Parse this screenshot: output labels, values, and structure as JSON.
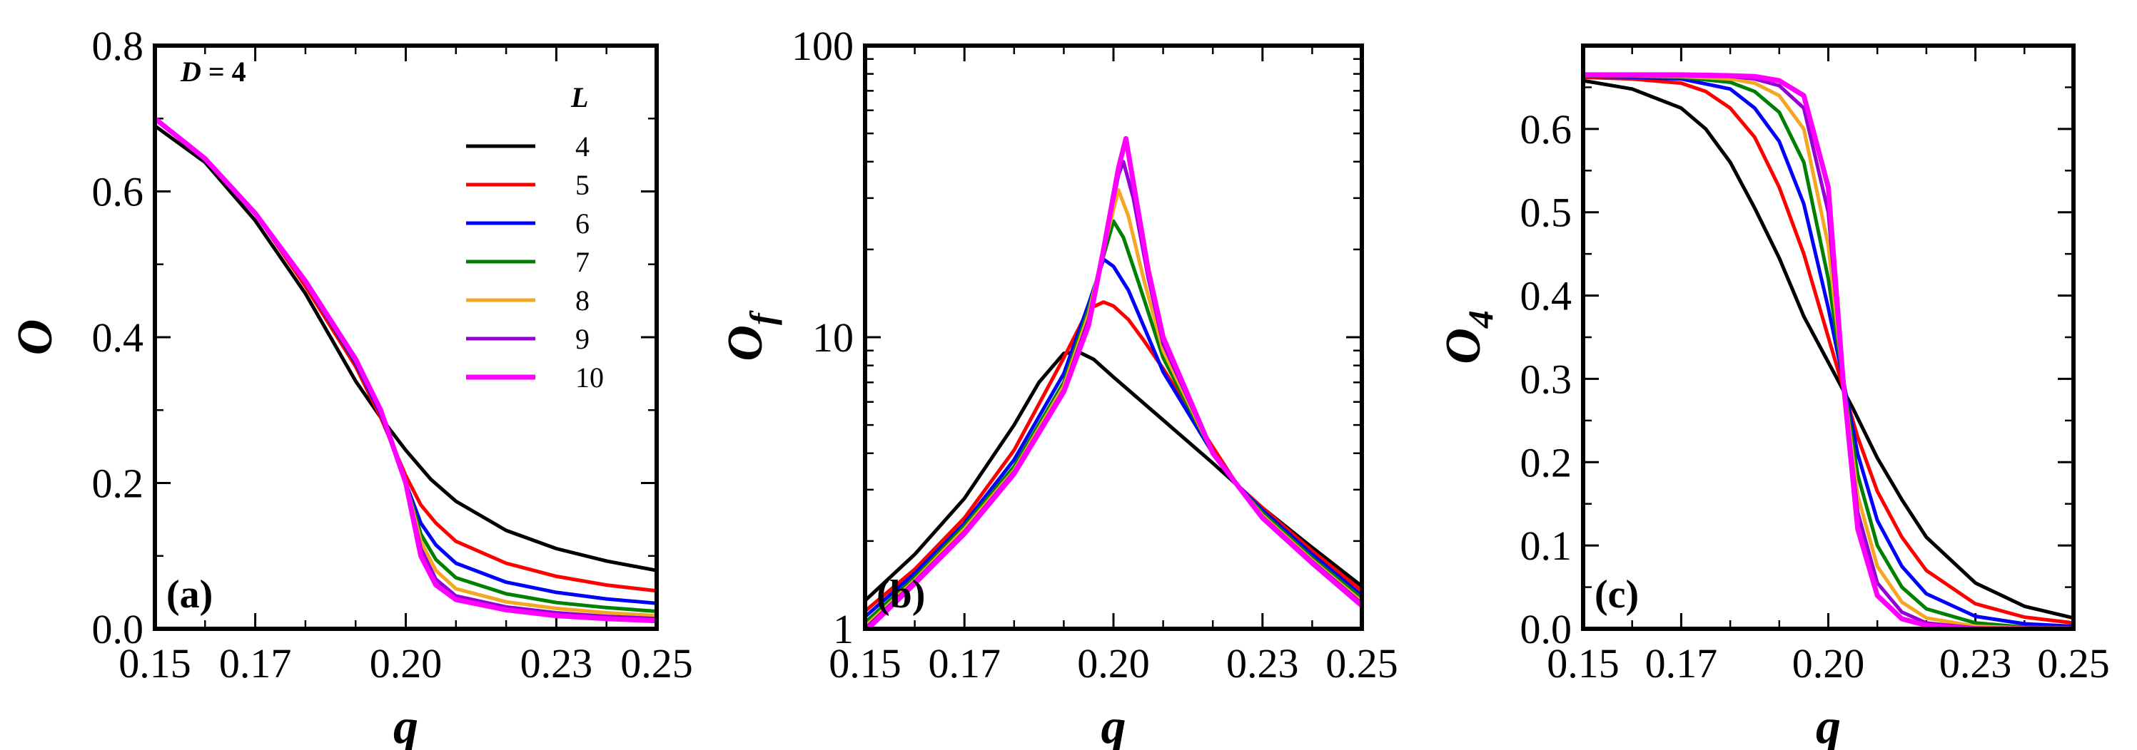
{
  "chart_data": [
    {
      "type": "line",
      "panel_label": "(a)",
      "xlabel": "q",
      "ylabel": "O",
      "ylabel_sub": "",
      "xlim": [
        0.15,
        0.25
      ],
      "ylim": [
        0,
        0.8
      ],
      "yscale": "linear",
      "xticks": [
        "0.15",
        "0.17",
        "0.20",
        "0.23",
        "0.25"
      ],
      "yticks": [
        "0.0",
        "0.2",
        "0.4",
        "0.6",
        "0.8"
      ],
      "annotation": {
        "var": "D",
        "text": " = 4"
      },
      "legend": {
        "title": "L",
        "placement": "top-right"
      },
      "series": [
        {
          "name": "4",
          "color": "#000000",
          "x": [
            0.15,
            0.16,
            0.17,
            0.18,
            0.185,
            0.19,
            0.195,
            0.2,
            0.205,
            0.21,
            0.22,
            0.23,
            0.24,
            0.25
          ],
          "y": [
            0.69,
            0.64,
            0.56,
            0.46,
            0.4,
            0.34,
            0.29,
            0.245,
            0.205,
            0.175,
            0.135,
            0.11,
            0.093,
            0.08
          ]
        },
        {
          "name": "5",
          "color": "#ff0000",
          "x": [
            0.15,
            0.16,
            0.17,
            0.18,
            0.19,
            0.195,
            0.2,
            0.203,
            0.206,
            0.21,
            0.22,
            0.23,
            0.24,
            0.25
          ],
          "y": [
            0.7,
            0.645,
            0.57,
            0.47,
            0.36,
            0.29,
            0.21,
            0.17,
            0.145,
            0.12,
            0.09,
            0.072,
            0.06,
            0.052
          ]
        },
        {
          "name": "6",
          "color": "#0000ff",
          "x": [
            0.15,
            0.16,
            0.17,
            0.18,
            0.19,
            0.195,
            0.2,
            0.203,
            0.206,
            0.21,
            0.22,
            0.23,
            0.24,
            0.25
          ],
          "y": [
            0.7,
            0.645,
            0.57,
            0.475,
            0.365,
            0.295,
            0.2,
            0.145,
            0.115,
            0.09,
            0.064,
            0.05,
            0.041,
            0.035
          ]
        },
        {
          "name": "7",
          "color": "#008000",
          "x": [
            0.15,
            0.16,
            0.17,
            0.18,
            0.19,
            0.195,
            0.2,
            0.203,
            0.206,
            0.21,
            0.22,
            0.23,
            0.24,
            0.25
          ],
          "y": [
            0.7,
            0.645,
            0.57,
            0.475,
            0.367,
            0.3,
            0.2,
            0.13,
            0.095,
            0.07,
            0.048,
            0.036,
            0.029,
            0.024
          ]
        },
        {
          "name": "8",
          "color": "#f5a623",
          "x": [
            0.15,
            0.16,
            0.17,
            0.18,
            0.19,
            0.195,
            0.2,
            0.203,
            0.206,
            0.21,
            0.22,
            0.23,
            0.24,
            0.25
          ],
          "y": [
            0.7,
            0.645,
            0.57,
            0.476,
            0.368,
            0.3,
            0.2,
            0.12,
            0.08,
            0.055,
            0.037,
            0.028,
            0.022,
            0.018
          ]
        },
        {
          "name": "9",
          "color": "#9400d3",
          "x": [
            0.15,
            0.16,
            0.17,
            0.18,
            0.19,
            0.195,
            0.2,
            0.203,
            0.206,
            0.21,
            0.22,
            0.23,
            0.24,
            0.25
          ],
          "y": [
            0.7,
            0.645,
            0.57,
            0.476,
            0.369,
            0.3,
            0.2,
            0.11,
            0.068,
            0.045,
            0.03,
            0.022,
            0.017,
            0.014
          ]
        },
        {
          "name": "10",
          "color": "#ff00ff",
          "x": [
            0.15,
            0.16,
            0.17,
            0.18,
            0.19,
            0.195,
            0.2,
            0.203,
            0.206,
            0.21,
            0.22,
            0.23,
            0.24,
            0.25
          ],
          "y": [
            0.7,
            0.645,
            0.57,
            0.477,
            0.37,
            0.3,
            0.2,
            0.1,
            0.06,
            0.04,
            0.026,
            0.018,
            0.014,
            0.011
          ]
        }
      ]
    },
    {
      "type": "line",
      "panel_label": "(b)",
      "xlabel": "q",
      "ylabel": "O",
      "ylabel_sub": "f",
      "xlim": [
        0.15,
        0.25
      ],
      "ylim": [
        1,
        100
      ],
      "yscale": "log",
      "xticks": [
        "0.15",
        "0.17",
        "0.20",
        "0.23",
        "0.25"
      ],
      "yticks": [
        "1",
        "10",
        "100"
      ],
      "series": [
        {
          "name": "4",
          "color": "#000000",
          "x": [
            0.15,
            0.16,
            0.17,
            0.18,
            0.185,
            0.19,
            0.193,
            0.196,
            0.2,
            0.21,
            0.22,
            0.225,
            0.23,
            0.24,
            0.25
          ],
          "y": [
            1.25,
            1.8,
            2.8,
            5.0,
            7.0,
            8.8,
            8.9,
            8.4,
            7.3,
            5.2,
            3.7,
            3.1,
            2.6,
            1.9,
            1.4
          ]
        },
        {
          "name": "5",
          "color": "#ff0000",
          "x": [
            0.15,
            0.16,
            0.17,
            0.18,
            0.19,
            0.195,
            0.198,
            0.2,
            0.203,
            0.206,
            0.21,
            0.22,
            0.225,
            0.23,
            0.24,
            0.25
          ],
          "y": [
            1.15,
            1.6,
            2.4,
            4.1,
            8.5,
            12.5,
            13.2,
            12.8,
            11.5,
            9.8,
            7.8,
            4.2,
            3.1,
            2.6,
            1.85,
            1.35
          ]
        },
        {
          "name": "6",
          "color": "#0000ff",
          "x": [
            0.15,
            0.16,
            0.17,
            0.18,
            0.19,
            0.195,
            0.198,
            0.2,
            0.203,
            0.206,
            0.21,
            0.22,
            0.225,
            0.23,
            0.24,
            0.25
          ],
          "y": [
            1.1,
            1.55,
            2.3,
            3.8,
            7.5,
            13.0,
            18.5,
            17.5,
            14.5,
            11.0,
            7.6,
            4.0,
            3.1,
            2.55,
            1.8,
            1.3
          ]
        },
        {
          "name": "7",
          "color": "#008000",
          "x": [
            0.15,
            0.16,
            0.17,
            0.18,
            0.19,
            0.195,
            0.198,
            0.2,
            0.202,
            0.205,
            0.21,
            0.22,
            0.225,
            0.23,
            0.24,
            0.25
          ],
          "y": [
            1.05,
            1.5,
            2.25,
            3.6,
            7.0,
            12.5,
            19.0,
            25.0,
            22.0,
            15.5,
            8.5,
            4.0,
            3.1,
            2.5,
            1.75,
            1.27
          ]
        },
        {
          "name": "8",
          "color": "#f5a623",
          "x": [
            0.15,
            0.16,
            0.17,
            0.18,
            0.19,
            0.195,
            0.198,
            0.201,
            0.203,
            0.206,
            0.21,
            0.22,
            0.225,
            0.23,
            0.24,
            0.25
          ],
          "y": [
            1.02,
            1.47,
            2.2,
            3.5,
            6.8,
            12.0,
            20.0,
            32.0,
            26.0,
            16.0,
            9.0,
            4.0,
            3.1,
            2.45,
            1.72,
            1.24
          ]
        },
        {
          "name": "9",
          "color": "#9400d3",
          "x": [
            0.15,
            0.16,
            0.17,
            0.18,
            0.19,
            0.195,
            0.198,
            0.201,
            0.202,
            0.204,
            0.207,
            0.21,
            0.22,
            0.225,
            0.23,
            0.24,
            0.25
          ],
          "y": [
            1.0,
            1.45,
            2.15,
            3.45,
            6.6,
            11.5,
            20.0,
            36.0,
            40.0,
            30.0,
            16.0,
            9.5,
            4.0,
            3.1,
            2.42,
            1.7,
            1.22
          ]
        },
        {
          "name": "10",
          "color": "#ff00ff",
          "x": [
            0.15,
            0.16,
            0.17,
            0.18,
            0.19,
            0.195,
            0.198,
            0.201,
            0.2025,
            0.204,
            0.207,
            0.21,
            0.22,
            0.225,
            0.23,
            0.24,
            0.25
          ],
          "y": [
            0.98,
            1.43,
            2.12,
            3.4,
            6.5,
            11.0,
            20.0,
            38.0,
            48.0,
            34.0,
            17.0,
            10.0,
            4.0,
            3.1,
            2.4,
            1.68,
            1.2
          ]
        }
      ]
    },
    {
      "type": "line",
      "panel_label": "(c)",
      "xlabel": "q",
      "ylabel": "O",
      "ylabel_sub": "4",
      "xlim": [
        0.15,
        0.25
      ],
      "ylim": [
        0,
        0.7
      ],
      "yscale": "linear",
      "xticks": [
        "0.15",
        "0.17",
        "0.20",
        "0.23",
        "0.25"
      ],
      "yticks": [
        "0.0",
        "0.1",
        "0.2",
        "0.3",
        "0.4",
        "0.5",
        "0.6"
      ],
      "series": [
        {
          "name": "4",
          "color": "#000000",
          "x": [
            0.15,
            0.16,
            0.17,
            0.175,
            0.18,
            0.185,
            0.19,
            0.195,
            0.2,
            0.205,
            0.21,
            0.215,
            0.22,
            0.23,
            0.24,
            0.25
          ],
          "y": [
            0.658,
            0.648,
            0.625,
            0.6,
            0.56,
            0.505,
            0.445,
            0.375,
            0.32,
            0.265,
            0.205,
            0.155,
            0.11,
            0.055,
            0.027,
            0.013
          ]
        },
        {
          "name": "5",
          "color": "#ff0000",
          "x": [
            0.15,
            0.16,
            0.17,
            0.175,
            0.18,
            0.185,
            0.19,
            0.195,
            0.2,
            0.203,
            0.206,
            0.21,
            0.215,
            0.22,
            0.23,
            0.24,
            0.25
          ],
          "y": [
            0.662,
            0.66,
            0.655,
            0.645,
            0.625,
            0.59,
            0.53,
            0.45,
            0.35,
            0.29,
            0.23,
            0.165,
            0.11,
            0.07,
            0.03,
            0.014,
            0.007
          ]
        },
        {
          "name": "6",
          "color": "#0000ff",
          "x": [
            0.15,
            0.16,
            0.17,
            0.18,
            0.185,
            0.19,
            0.195,
            0.2,
            0.203,
            0.206,
            0.21,
            0.215,
            0.22,
            0.23,
            0.24,
            0.25
          ],
          "y": [
            0.663,
            0.662,
            0.66,
            0.648,
            0.625,
            0.585,
            0.51,
            0.385,
            0.3,
            0.21,
            0.13,
            0.075,
            0.042,
            0.015,
            0.006,
            0.003
          ]
        },
        {
          "name": "7",
          "color": "#008000",
          "x": [
            0.15,
            0.16,
            0.17,
            0.18,
            0.185,
            0.19,
            0.195,
            0.2,
            0.203,
            0.206,
            0.21,
            0.215,
            0.22,
            0.23,
            0.24,
            0.25
          ],
          "y": [
            0.663,
            0.663,
            0.662,
            0.656,
            0.645,
            0.62,
            0.56,
            0.42,
            0.3,
            0.185,
            0.1,
            0.05,
            0.024,
            0.007,
            0.002,
            0.001
          ]
        },
        {
          "name": "8",
          "color": "#f5a623",
          "x": [
            0.15,
            0.16,
            0.17,
            0.18,
            0.185,
            0.19,
            0.195,
            0.2,
            0.203,
            0.206,
            0.21,
            0.215,
            0.22,
            0.23,
            0.24,
            0.25
          ],
          "y": [
            0.664,
            0.664,
            0.663,
            0.66,
            0.655,
            0.64,
            0.6,
            0.46,
            0.3,
            0.16,
            0.075,
            0.032,
            0.013,
            0.003,
            0.001,
            0.0
          ]
        },
        {
          "name": "9",
          "color": "#9400d3",
          "x": [
            0.15,
            0.16,
            0.17,
            0.18,
            0.185,
            0.19,
            0.195,
            0.2,
            0.203,
            0.206,
            0.21,
            0.215,
            0.22,
            0.23,
            0.24,
            0.25
          ],
          "y": [
            0.664,
            0.664,
            0.664,
            0.663,
            0.66,
            0.652,
            0.625,
            0.5,
            0.3,
            0.14,
            0.055,
            0.02,
            0.007,
            0.001,
            0.0,
            0.0
          ]
        },
        {
          "name": "10",
          "color": "#ff00ff",
          "x": [
            0.15,
            0.16,
            0.17,
            0.18,
            0.185,
            0.19,
            0.195,
            0.2,
            0.203,
            0.206,
            0.21,
            0.215,
            0.22,
            0.23,
            0.24,
            0.25
          ],
          "y": [
            0.665,
            0.665,
            0.665,
            0.664,
            0.663,
            0.658,
            0.64,
            0.53,
            0.3,
            0.12,
            0.04,
            0.012,
            0.004,
            0.0,
            0.0,
            0.0
          ]
        }
      ]
    }
  ]
}
